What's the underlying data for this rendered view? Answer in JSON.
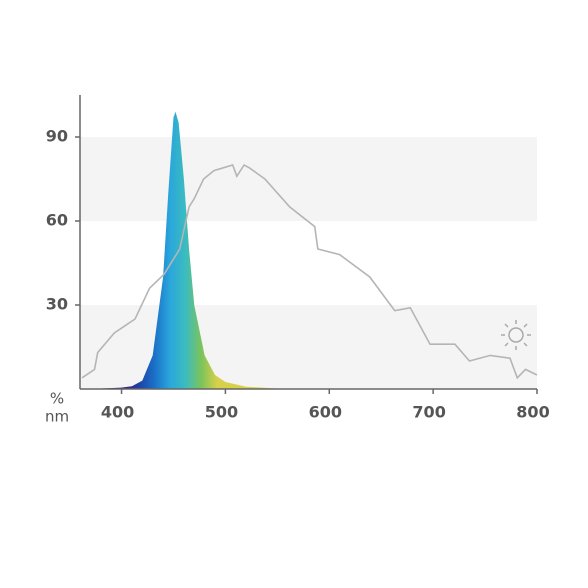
{
  "chart_data": {
    "type": "area",
    "xlabel": "nm",
    "ylabel": "%",
    "xlim": [
      360,
      800
    ],
    "ylim": [
      0,
      105
    ],
    "xticks": [
      400,
      500,
      600,
      700,
      800
    ],
    "yticks": [
      30,
      60,
      90
    ],
    "grid": "bands",
    "series": [
      {
        "type": "area",
        "gradient": [
          "#3a1a6e",
          "#1f3fa6",
          "#1a6fc6",
          "#2aa6dc",
          "#3bbcc0",
          "#7cc35a",
          "#d6d04a"
        ],
        "x": [
          360,
          380,
          400,
          410,
          420,
          430,
          440,
          445,
          450,
          452,
          455,
          460,
          465,
          470,
          480,
          490,
          500,
          520,
          550,
          600
        ],
        "values": [
          0,
          0.2,
          0.5,
          1,
          3,
          12,
          40,
          70,
          97,
          99,
          95,
          75,
          50,
          30,
          12,
          5,
          2.5,
          0.8,
          0.2,
          0
        ]
      },
      {
        "type": "line",
        "color": "#b5b5b5",
        "x": [
          362,
          374,
          377,
          393,
          413,
          427,
          441,
          456,
          465,
          470,
          479,
          489,
          498,
          507,
          511,
          518,
          523,
          538,
          562,
          586,
          589,
          610,
          639,
          663,
          678,
          697,
          721,
          735,
          755,
          774,
          781,
          789,
          800
        ],
        "values": [
          4,
          7,
          13,
          20,
          25,
          36,
          41,
          50,
          65,
          68,
          75,
          78,
          79,
          80,
          76,
          80,
          79,
          75,
          65,
          58,
          50,
          48,
          40,
          28,
          29,
          16,
          16,
          10,
          12,
          11,
          4,
          7,
          5
        ]
      }
    ]
  }
}
